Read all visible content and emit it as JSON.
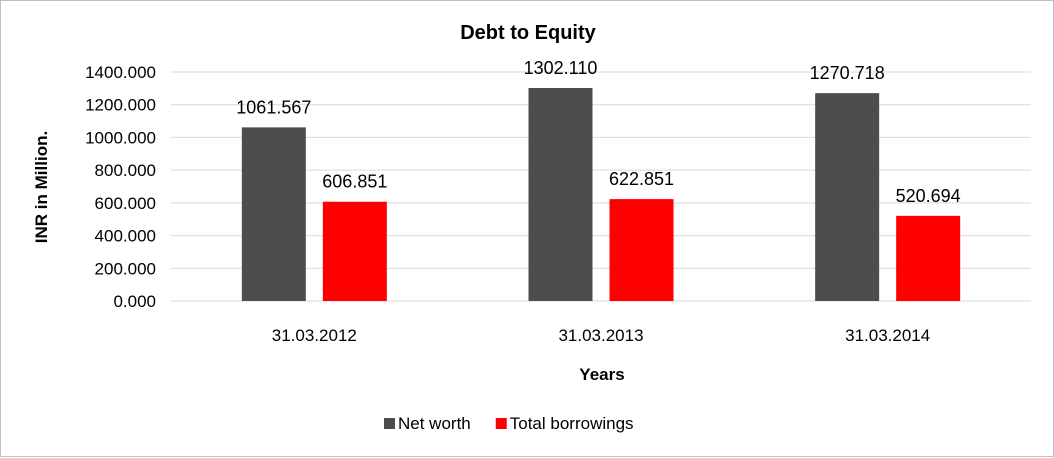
{
  "chart_data": {
    "type": "bar",
    "title": "Debt to Equity",
    "xlabel": "Years",
    "ylabel": "INR in Million.",
    "categories": [
      "31.03.2012",
      "31.03.2013",
      "31.03.2014"
    ],
    "series": [
      {
        "name": "Net worth",
        "color": "#4d4d4d",
        "values": [
          1061.567,
          1302.11,
          1270.718
        ],
        "labels": [
          "1061.567",
          "1302.110",
          "1270.718"
        ]
      },
      {
        "name": "Total borrowings",
        "color": "#ff0000",
        "values": [
          606.851,
          622.851,
          520.694
        ],
        "labels": [
          "606.851",
          "622.851",
          "520.694"
        ]
      }
    ],
    "ylim": [
      0,
      1400
    ],
    "yticks": [
      0,
      200,
      400,
      600,
      800,
      1000,
      1200,
      1400
    ],
    "ytick_labels": [
      "0.000",
      "200.000",
      "400.000",
      "600.000",
      "800.000",
      "1000.000",
      "1200.000",
      "1400.000"
    ],
    "grid": true,
    "legend_position": "bottom"
  }
}
